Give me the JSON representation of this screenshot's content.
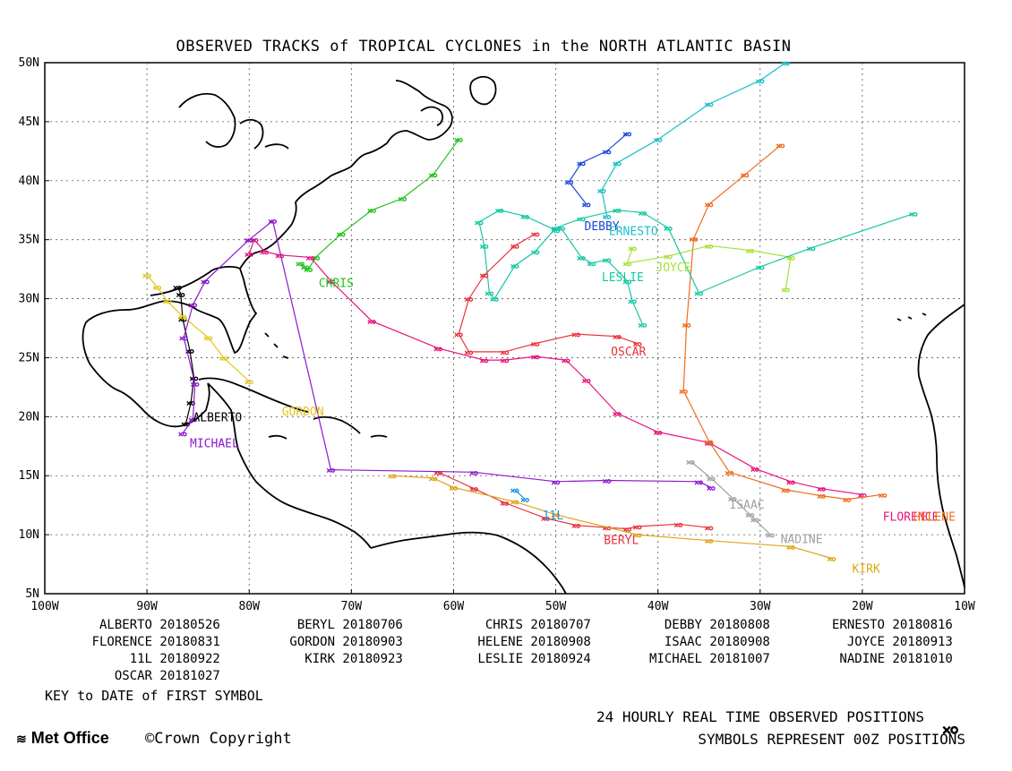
{
  "title": "OBSERVED TRACKS of TROPICAL CYCLONES in the NORTH ATLANTIC BASIN",
  "lat_labels": [
    "50N",
    "45N",
    "40N",
    "35N",
    "30N",
    "25N",
    "20N",
    "15N",
    "10N",
    "5N"
  ],
  "lon_labels": [
    "100W",
    "90W",
    "80W",
    "70W",
    "60W",
    "50W",
    "40W",
    "30W",
    "20W",
    "10W"
  ],
  "storms": [
    {
      "name": "ALBERTO",
      "date": "20180526",
      "color": "#000000",
      "label_text": "ALBERTO",
      "label_pos": [
        -85.5,
        19.6
      ],
      "track": [
        [
          -86.2,
          19.4
        ],
        [
          -85.7,
          21.2
        ],
        [
          -85.4,
          23.3
        ],
        [
          -85.8,
          25.6
        ],
        [
          -86.5,
          28.3
        ],
        [
          -86.7,
          30.4
        ],
        [
          -87.0,
          31.0
        ]
      ]
    },
    {
      "name": "BERYL",
      "date": "20180706",
      "color": "#e8323c",
      "label_text": "BERYL",
      "label_pos": [
        -45.3,
        9.2
      ],
      "track": [
        [
          -35.0,
          10.6
        ],
        [
          -38.0,
          10.9
        ],
        [
          -42.0,
          10.7
        ],
        [
          -43.0,
          10.5
        ],
        [
          -45.0,
          10.6
        ],
        [
          -48.0,
          10.8
        ],
        [
          -51.0,
          11.4
        ],
        [
          -55.0,
          12.7
        ],
        [
          -58.0,
          13.9
        ],
        [
          -61.5,
          15.3
        ]
      ]
    },
    {
      "name": "CHRIS",
      "date": "20180707",
      "color": "#22c21c",
      "label_text": "CHRIS",
      "label_pos": [
        -73.2,
        31.0
      ],
      "track": [
        [
          -75.0,
          33.0
        ],
        [
          -74.5,
          32.7
        ],
        [
          -74.2,
          32.5
        ],
        [
          -73.5,
          33.5
        ],
        [
          -71.0,
          35.5
        ],
        [
          -68.0,
          37.5
        ],
        [
          -65.0,
          38.5
        ],
        [
          -62.0,
          40.5
        ],
        [
          -59.5,
          43.5
        ]
      ]
    },
    {
      "name": "DEBBY",
      "date": "20180808",
      "color": "#1e46d8",
      "label_text": "DEBBY",
      "label_pos": [
        -47.2,
        35.8
      ],
      "track": [
        [
          -47.0,
          38.0
        ],
        [
          -48.7,
          39.9
        ],
        [
          -47.5,
          41.5
        ],
        [
          -45.0,
          42.5
        ],
        [
          -43.0,
          44.0
        ]
      ]
    },
    {
      "name": "ERNESTO",
      "date": "20180816",
      "color": "#18c0c8",
      "label_text": "ERNESTO",
      "label_pos": [
        -44.8,
        35.4
      ],
      "track": [
        [
          -45.0,
          37.0
        ],
        [
          -45.5,
          39.2
        ],
        [
          -44.0,
          41.5
        ],
        [
          -40.0,
          43.5
        ],
        [
          -35.0,
          46.5
        ],
        [
          -30.0,
          48.5
        ],
        [
          -27.5,
          50.0
        ]
      ]
    },
    {
      "name": "FLORENCE",
      "date": "20180831",
      "color": "#e8127c",
      "label_text": "FLORENCE",
      "label_pos": [
        -18.0,
        11.2
      ],
      "track": [
        [
          -20.0,
          13.4
        ],
        [
          -24.0,
          13.9
        ],
        [
          -27.0,
          14.5
        ],
        [
          -30.5,
          15.6
        ],
        [
          -35.0,
          17.8
        ],
        [
          -40.0,
          18.7
        ],
        [
          -44.0,
          20.3
        ],
        [
          -47.0,
          23.1
        ],
        [
          -49.0,
          24.8
        ],
        [
          -52.0,
          25.1
        ],
        [
          -55.0,
          24.8
        ],
        [
          -57.0,
          24.8
        ],
        [
          -61.5,
          25.8
        ],
        [
          -68.0,
          28.1
        ],
        [
          -72.0,
          31.5
        ],
        [
          -74.0,
          33.5
        ],
        [
          -77.0,
          33.7
        ],
        [
          -78.5,
          34.0
        ],
        [
          -79.5,
          35.0
        ],
        [
          -80.0,
          33.8
        ]
      ]
    },
    {
      "name": "GORDON",
      "date": "20180903",
      "color": "#e0c81c",
      "label_text": "GORDON",
      "label_pos": [
        -76.8,
        20.1
      ],
      "track": [
        [
          -80.0,
          23.0
        ],
        [
          -82.5,
          25.0
        ],
        [
          -84.0,
          26.7
        ],
        [
          -86.5,
          28.5
        ],
        [
          -88.0,
          29.8
        ],
        [
          -89.0,
          31.0
        ],
        [
          -90.0,
          32.0
        ]
      ]
    },
    {
      "name": "HELENE",
      "date": "20180908",
      "color": "#f06c1c",
      "label_text": "HELENE",
      "label_pos": [
        -15.0,
        11.2
      ],
      "track": [
        [
          -18.0,
          13.4
        ],
        [
          -21.5,
          13.0
        ],
        [
          -24.0,
          13.3
        ],
        [
          -27.5,
          13.8
        ],
        [
          -33.0,
          15.3
        ],
        [
          -35.0,
          17.9
        ],
        [
          -37.5,
          22.2
        ],
        [
          -37.2,
          27.8
        ],
        [
          -36.5,
          35.1
        ],
        [
          -35.0,
          38.0
        ],
        [
          -31.5,
          40.5
        ],
        [
          -28.0,
          43.0
        ]
      ]
    },
    {
      "name": "ISAAC",
      "date": "20180908",
      "color": "#a0a0a0",
      "label_text": "ISAAC",
      "label_pos": [
        -33.0,
        12.2
      ],
      "track": [
        [
          -30.5,
          11.3
        ],
        [
          -32.7,
          13.1
        ],
        [
          -34.8,
          14.8
        ],
        [
          -36.8,
          16.2
        ]
      ]
    },
    {
      "name": "JOYCE",
      "date": "20180913",
      "color": "#a8e03c",
      "label_text": "JOYCE",
      "label_pos": [
        -40.2,
        32.3
      ],
      "track": [
        [
          -27.5,
          30.8
        ],
        [
          -27.0,
          33.5
        ],
        [
          -31.0,
          34.1
        ],
        [
          -35.0,
          34.5
        ],
        [
          -39.0,
          33.6
        ],
        [
          -43.0,
          33.0
        ],
        [
          -42.5,
          34.3
        ]
      ]
    },
    {
      "name": "KIRK",
      "date": "20180923",
      "color": "#e0a418",
      "label_text": "KIRK",
      "label_pos": [
        -21.0,
        6.8
      ],
      "track": [
        [
          -23.0,
          8.0
        ],
        [
          -27.0,
          9.0
        ],
        [
          -35.0,
          9.5
        ],
        [
          -42.0,
          10.0
        ],
        [
          -50.0,
          11.7
        ],
        [
          -54.0,
          12.8
        ],
        [
          -60.0,
          14.0
        ],
        [
          -62.0,
          14.8
        ],
        [
          -66.0,
          15.0
        ]
      ]
    },
    {
      "name": "11L",
      "date": "20180922",
      "color": "#1c94e4",
      "label_text": "11L",
      "label_pos": [
        -51.3,
        11.3
      ],
      "track": [
        [
          -53.0,
          13.0
        ],
        [
          -54.0,
          13.8
        ]
      ]
    },
    {
      "name": "LESLIE",
      "date": "20180924",
      "color": "#14c8a4",
      "label_text": "LESLIE",
      "label_pos": [
        -45.5,
        31.5
      ],
      "track": [
        [
          -41.5,
          27.8
        ],
        [
          -42.5,
          29.8
        ],
        [
          -43.0,
          31.5
        ],
        [
          -45.0,
          33.3
        ],
        [
          -46.5,
          33.0
        ],
        [
          -47.5,
          33.5
        ],
        [
          -49.5,
          36.0
        ],
        [
          -50.0,
          35.8
        ],
        [
          -53.0,
          37.0
        ],
        [
          -55.5,
          37.5
        ],
        [
          -57.5,
          36.5
        ],
        [
          -57.0,
          34.5
        ],
        [
          -56.5,
          30.5
        ],
        [
          -56.0,
          30.0
        ],
        [
          -54.0,
          32.8
        ],
        [
          -52.0,
          34.0
        ],
        [
          -50.0,
          36.0
        ],
        [
          -47.5,
          36.8
        ],
        [
          -44.0,
          37.5
        ],
        [
          -41.5,
          37.3
        ],
        [
          -39.0,
          36.0
        ],
        [
          -36.0,
          30.5
        ],
        [
          -30.0,
          32.7
        ],
        [
          -25.0,
          34.3
        ],
        [
          -15.0,
          37.2
        ]
      ]
    },
    {
      "name": "MICHAEL",
      "date": "20181007",
      "color": "#8c18d0",
      "label_text": "MICHAEL",
      "label_pos": [
        -85.8,
        17.4
      ],
      "track": [
        [
          -86.5,
          18.6
        ],
        [
          -85.5,
          19.8
        ],
        [
          -85.3,
          22.8
        ],
        [
          -86.4,
          26.7
        ],
        [
          -85.5,
          29.5
        ],
        [
          -84.3,
          31.5
        ],
        [
          -80.0,
          35.0
        ],
        [
          -77.7,
          36.6
        ],
        [
          -72.0,
          15.5
        ],
        [
          -58.0,
          15.3
        ],
        [
          -50.0,
          14.5
        ],
        [
          -45.0,
          14.6
        ],
        [
          -36.0,
          14.5
        ],
        [
          -34.8,
          14.0
        ]
      ]
    },
    {
      "name": "NADINE",
      "date": "20181010",
      "color": "#a0a0a0",
      "label_text": "NADINE",
      "label_pos": [
        -28.0,
        9.3
      ],
      "track": [
        [
          -29.0,
          10.0
        ],
        [
          -31.0,
          11.7
        ]
      ]
    },
    {
      "name": "OSCAR",
      "date": "20181027",
      "color": "#e8323c",
      "label_text": "OSCAR",
      "label_pos": [
        -44.6,
        25.2
      ],
      "track": [
        [
          -42.0,
          26.2
        ],
        [
          -44.0,
          26.8
        ],
        [
          -48.0,
          27.0
        ],
        [
          -52.0,
          26.2
        ],
        [
          -55.0,
          25.5
        ],
        [
          -58.5,
          25.5
        ],
        [
          -59.5,
          27.0
        ],
        [
          -58.5,
          30.0
        ],
        [
          -57.0,
          32.0
        ],
        [
          -54.0,
          34.5
        ],
        [
          -52.0,
          35.5
        ]
      ]
    }
  ],
  "legend_rows": [
    [
      {
        "name": "ALBERTO",
        "date": "20180526"
      },
      {
        "name": "BERYL",
        "date": "20180706"
      },
      {
        "name": "CHRIS",
        "date": "20180707"
      },
      {
        "name": "DEBBY",
        "date": "20180808"
      },
      {
        "name": "ERNESTO",
        "date": "20180816"
      }
    ],
    [
      {
        "name": "FLORENCE",
        "date": "20180831"
      },
      {
        "name": "GORDON",
        "date": "20180903"
      },
      {
        "name": "HELENE",
        "date": "20180908"
      },
      {
        "name": "ISAAC",
        "date": "20180908"
      },
      {
        "name": "JOYCE",
        "date": "20180913"
      }
    ],
    [
      {
        "name": "11L",
        "date": "20180922"
      },
      {
        "name": "KIRK",
        "date": "20180923"
      },
      {
        "name": "LESLIE",
        "date": "20180924"
      },
      {
        "name": "MICHAEL",
        "date": "20181007"
      },
      {
        "name": "NADINE",
        "date": "20181010"
      }
    ],
    [
      {
        "name": "OSCAR",
        "date": "20181027"
      }
    ]
  ],
  "key_note": "KEY to DATE of FIRST SYMBOL",
  "footer": {
    "positions": "24 HOURLY REAL TIME OBSERVED POSITIONS",
    "symbols": "SYMBOLS REPRESENT 00Z POSITIONS",
    "metoffice": "Met Office",
    "copyright": "©Crown Copyright",
    "cyclone_icon": "࿎"
  }
}
